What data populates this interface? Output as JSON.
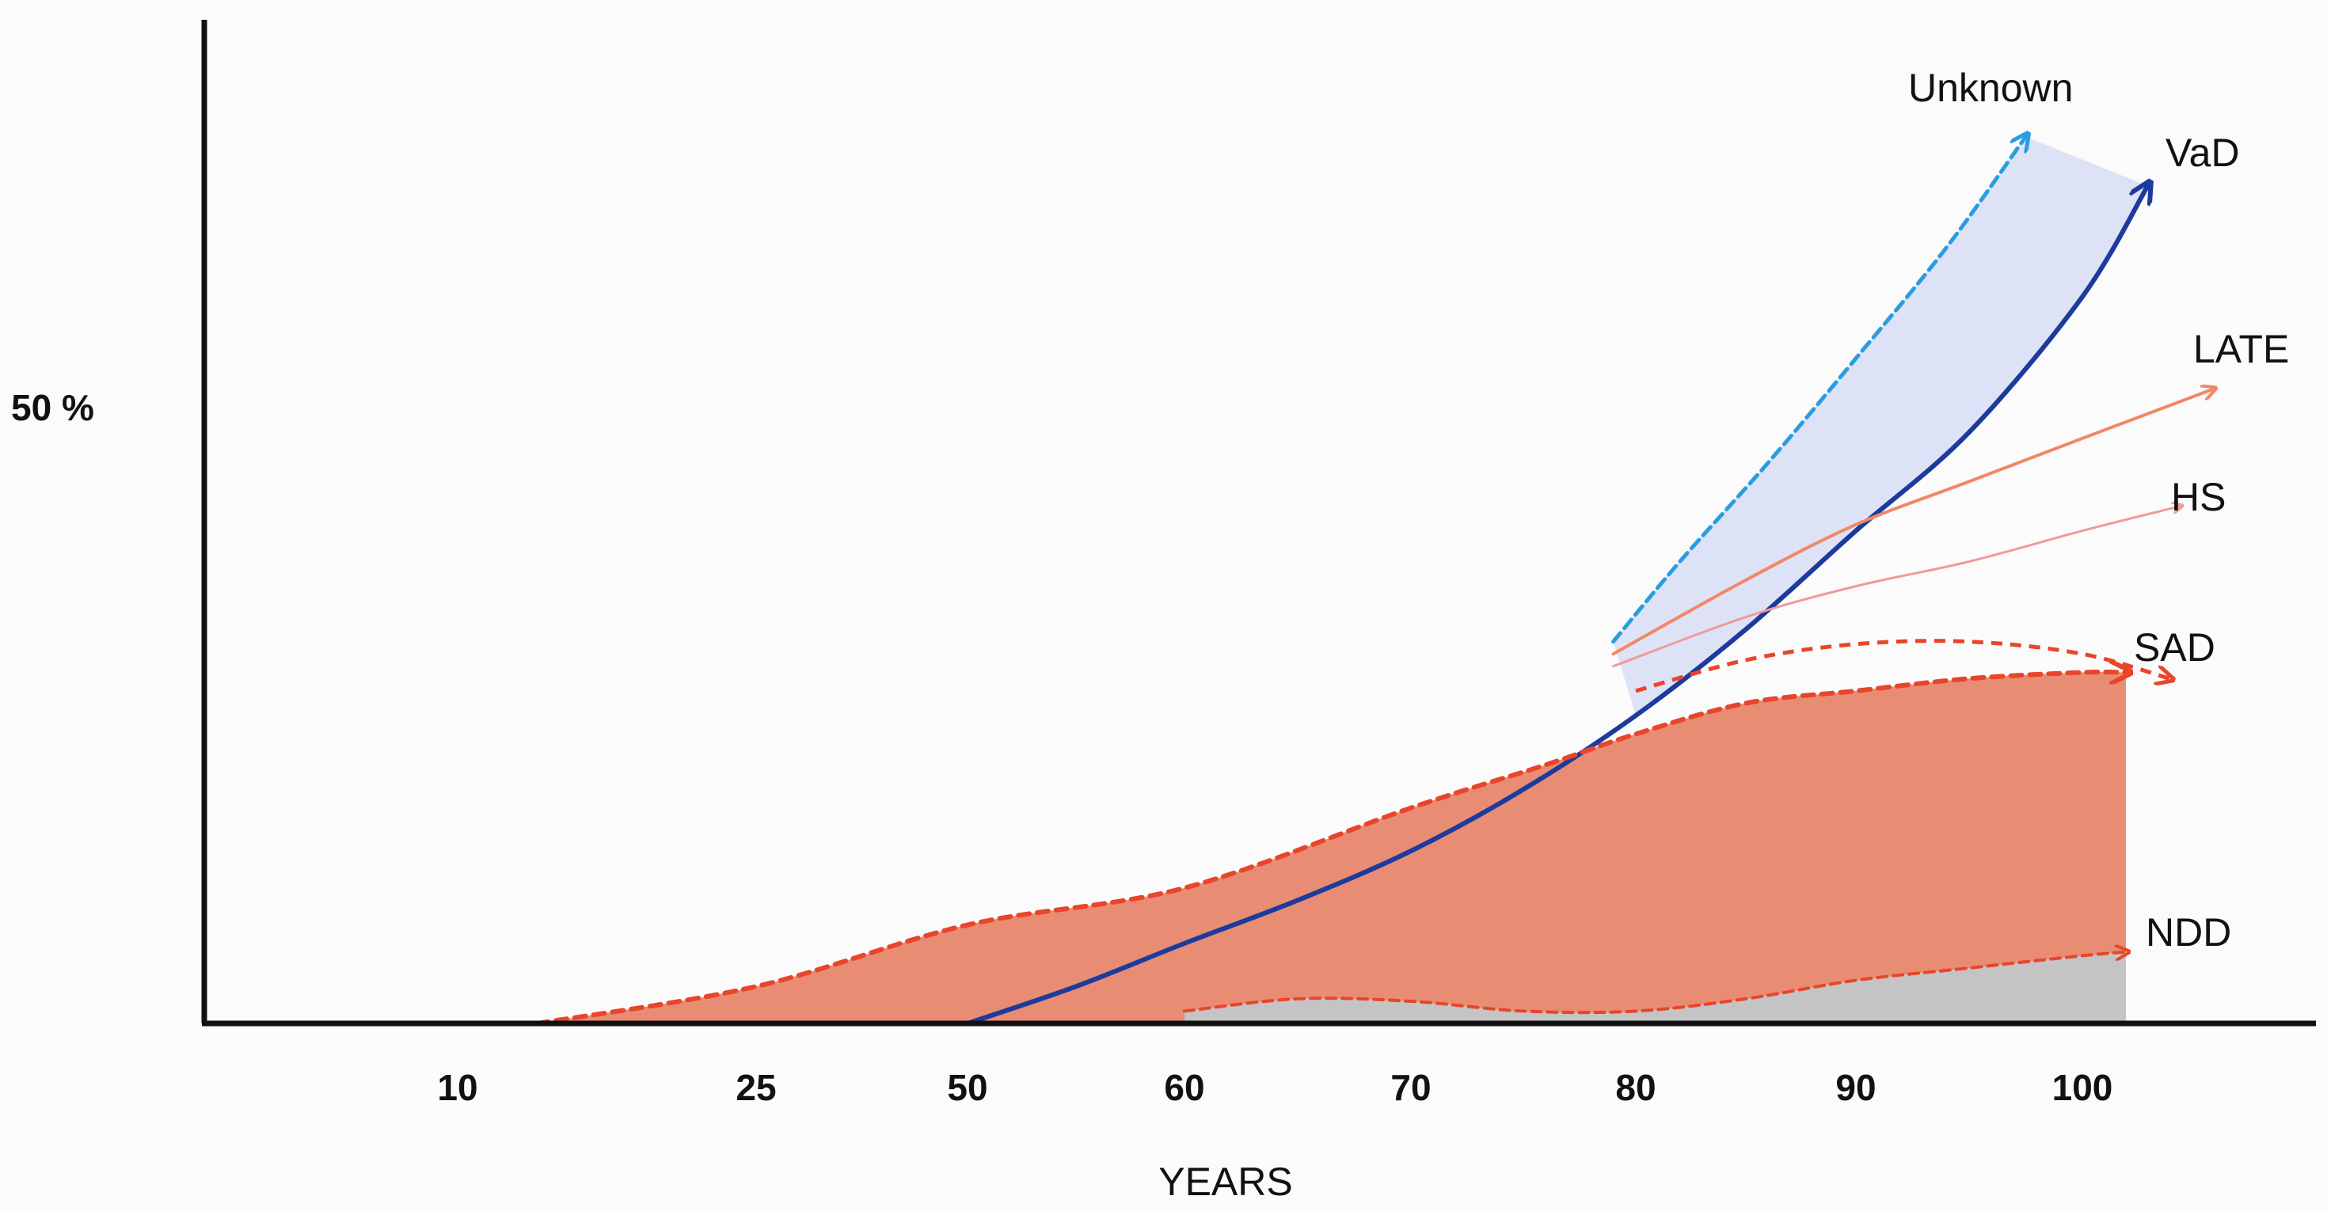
{
  "chart_data": {
    "type": "area",
    "xlabel": "YEARS",
    "ylabel": "",
    "y_tick_labels": [
      "50 %"
    ],
    "x_tick_labels": [
      "10",
      "25",
      "50",
      "60",
      "70",
      "80",
      "90",
      "100"
    ],
    "xlim": [
      0,
      110
    ],
    "ylim": [
      0,
      72
    ],
    "grid": false,
    "legend": "direct labels at line ends (right)",
    "series": [
      {
        "name": "Unknown",
        "style": "dashed arrow",
        "color": "#2a9de0",
        "x": [
          79,
          82,
          86,
          90,
          94,
          97.5
        ],
        "y": [
          31,
          37.5,
          45.5,
          54,
          63,
          72
        ]
      },
      {
        "name": "VaD",
        "style": "solid arrow",
        "color": "#1c3b9c",
        "x": [
          50,
          55,
          60,
          65,
          70,
          75,
          80,
          85,
          90,
          95,
          100,
          103
        ],
        "y": [
          0,
          3,
          6.5,
          10,
          14,
          19,
          25,
          32,
          40,
          48,
          59,
          68
        ]
      },
      {
        "name": "LATE",
        "style": "thin arrow",
        "color": "#f28766",
        "x": [
          79,
          85,
          90,
          95,
          100,
          106
        ],
        "y": [
          30,
          36,
          40.5,
          44,
          47.5,
          51.5
        ]
      },
      {
        "name": "HS",
        "style": "thin arrow",
        "color": "#f09a9a",
        "x": [
          79,
          85,
          90,
          95,
          100,
          104.5
        ],
        "y": [
          29,
          33,
          35.5,
          37.5,
          40,
          42
        ]
      },
      {
        "name": "SAD",
        "style": "dashed arrow (area top)",
        "color": "#e8452a",
        "x": [
          14,
          25,
          50,
          60,
          70,
          76,
          80,
          85,
          90,
          95,
          100,
          102
        ],
        "y": [
          0,
          3,
          8,
          11,
          17.5,
          21,
          23.5,
          26,
          27,
          28,
          28.5,
          28.5
        ]
      },
      {
        "name": "NDD",
        "style": "grey area",
        "color": "#c4c4c4",
        "x": [
          60,
          65,
          70,
          75,
          80,
          85,
          90,
          95,
          100,
          102
        ],
        "y": [
          1,
          2,
          1.8,
          1,
          1,
          2,
          3.5,
          4.5,
          5.5,
          5.8
        ]
      }
    ]
  }
}
